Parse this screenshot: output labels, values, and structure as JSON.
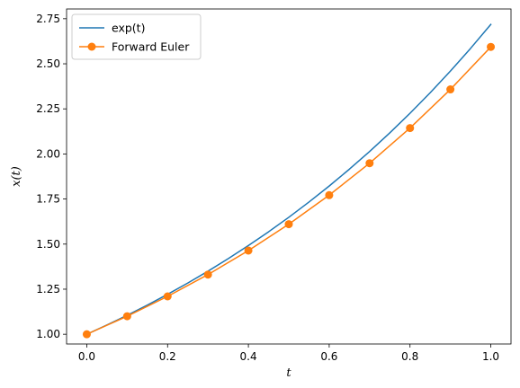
{
  "chart_data": {
    "type": "line",
    "xlabel": "t",
    "ylabel": "x(t)",
    "xlim": [
      -0.05,
      1.05
    ],
    "ylim": [
      0.946,
      2.804
    ],
    "xticks": [
      0.0,
      0.2,
      0.4,
      0.6,
      0.8,
      1.0
    ],
    "xtick_labels": [
      "0.0",
      "0.2",
      "0.4",
      "0.6",
      "0.8",
      "1.0"
    ],
    "yticks": [
      1.0,
      1.25,
      1.5,
      1.75,
      2.0,
      2.25,
      2.5,
      2.75
    ],
    "ytick_labels": [
      "1.00",
      "1.25",
      "1.50",
      "1.75",
      "2.00",
      "2.25",
      "2.50",
      "2.75"
    ],
    "grid": false,
    "legend_position": "upper-left",
    "series": [
      {
        "name": "exp(t)",
        "legend_label": "exp(t)",
        "color": "#1f77b4",
        "marker": "none",
        "x": [
          0.0,
          0.05,
          0.1,
          0.15,
          0.2,
          0.25,
          0.3,
          0.35,
          0.4,
          0.45,
          0.5,
          0.55,
          0.6,
          0.65,
          0.7,
          0.75,
          0.8,
          0.85,
          0.9,
          0.95,
          1.0
        ],
        "y": [
          1.0,
          1.0513,
          1.1052,
          1.1618,
          1.2214,
          1.284,
          1.3499,
          1.4191,
          1.4918,
          1.5683,
          1.6487,
          1.7333,
          1.8221,
          1.9155,
          2.0138,
          2.117,
          2.2255,
          2.3396,
          2.4596,
          2.5857,
          2.7183
        ]
      },
      {
        "name": "Forward Euler",
        "legend_label": "Forward Euler",
        "color": "#ff7f0e",
        "marker": "circle",
        "x": [
          0.0,
          0.1,
          0.2,
          0.3,
          0.4,
          0.5,
          0.6,
          0.7,
          0.8,
          0.9,
          1.0
        ],
        "y": [
          1.0,
          1.1,
          1.21,
          1.331,
          1.4641,
          1.6105,
          1.7716,
          1.9487,
          2.1436,
          2.3579,
          2.5937
        ]
      }
    ]
  }
}
